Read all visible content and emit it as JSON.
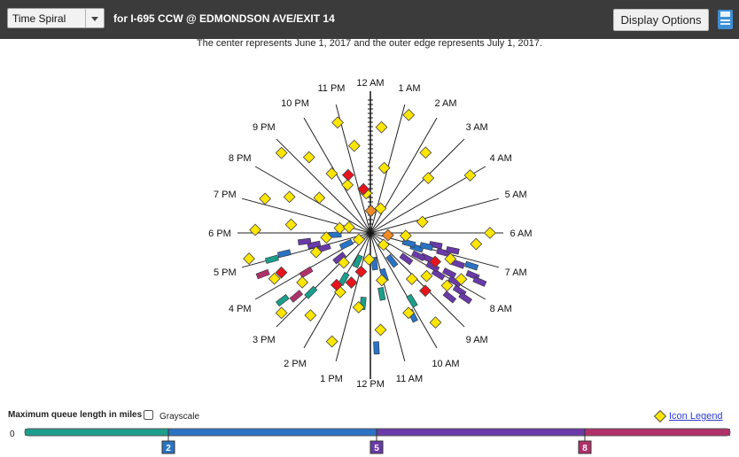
{
  "toolbar": {
    "view_select": "Time Spiral",
    "location": "for I-695 CCW @ EDMONDSON AVE/EXIT 14",
    "display_options": "Display Options",
    "save_icon": "save-icon"
  },
  "caption": "The center represents June 1, 2017 and the outer edge represents July 1, 2017.",
  "legend": {
    "title": "Maximum queue length in miles",
    "grayscale_label": "Grayscale",
    "icon_legend_link": "Icon Legend",
    "zero_label": "0",
    "thresholds": [
      "2",
      "5",
      "8"
    ],
    "colors": {
      "low": "#1b9e8c",
      "mid": "#2a73c4",
      "high": "#6a3aa8",
      "max": "#b0306a"
    }
  },
  "chart_data": {
    "type": "scatter",
    "radial_axis": {
      "start": "June 1, 2017",
      "end": "July 1, 2017"
    },
    "hour_labels": [
      "12 AM",
      "1 AM",
      "2 AM",
      "3 AM",
      "4 AM",
      "5 AM",
      "6 AM",
      "7 AM",
      "8 AM",
      "9 AM",
      "10 AM",
      "11 AM",
      "12 PM",
      "1 PM",
      "2 PM",
      "3 PM",
      "4 PM",
      "5 PM",
      "6 PM",
      "7 PM",
      "8 PM",
      "9 PM",
      "10 PM",
      "11 PM"
    ],
    "series": [
      {
        "marker": "diamond",
        "color": "#ffe600",
        "points": [
          {
            "day": 28,
            "hour": 1.2
          },
          {
            "day": 22,
            "hour": 2.3
          },
          {
            "day": 18,
            "hour": 3.1
          },
          {
            "day": 26,
            "hour": 4.0
          },
          {
            "day": 12,
            "hour": 5.2
          },
          {
            "day": 27,
            "hour": 6.0
          },
          {
            "day": 24,
            "hour": 6.4
          },
          {
            "day": 8,
            "hour": 6.3
          },
          {
            "day": 19,
            "hour": 7.2
          },
          {
            "day": 23,
            "hour": 7.8
          },
          {
            "day": 21,
            "hour": 8.3
          },
          {
            "day": 16,
            "hour": 8.5
          },
          {
            "day": 25,
            "hour": 9.6
          },
          {
            "day": 14,
            "hour": 9.2
          },
          {
            "day": 20,
            "hour": 10.3
          },
          {
            "day": 11,
            "hour": 11.1
          },
          {
            "day": 22,
            "hour": 11.6
          },
          {
            "day": 17,
            "hour": 12.6
          },
          {
            "day": 26,
            "hour": 13.3
          },
          {
            "day": 15,
            "hour": 13.8
          },
          {
            "day": 23,
            "hour": 14.4
          },
          {
            "day": 9,
            "hour": 14.8
          },
          {
            "day": 27,
            "hour": 15.2
          },
          {
            "day": 19,
            "hour": 15.6
          },
          {
            "day": 24,
            "hour": 16.3
          },
          {
            "day": 13,
            "hour": 16.7
          },
          {
            "day": 28,
            "hour": 17.2
          },
          {
            "day": 10,
            "hour": 17.6
          },
          {
            "day": 26,
            "hour": 18.1
          },
          {
            "day": 18,
            "hour": 18.4
          },
          {
            "day": 7,
            "hour": 18.6
          },
          {
            "day": 25,
            "hour": 19.2
          },
          {
            "day": 20,
            "hour": 19.6
          },
          {
            "day": 14,
            "hour": 20.3
          },
          {
            "day": 27,
            "hour": 20.8
          },
          {
            "day": 22,
            "hour": 21.4
          },
          {
            "day": 16,
            "hour": 21.8
          },
          {
            "day": 12,
            "hour": 22.3
          },
          {
            "day": 26,
            "hour": 22.9
          },
          {
            "day": 20,
            "hour": 23.3
          },
          {
            "day": 9,
            "hour": 23.6
          },
          {
            "day": 24,
            "hour": 0.4
          },
          {
            "day": 15,
            "hour": 0.8
          },
          {
            "day": 6,
            "hour": 1.5
          },
          {
            "day": 5,
            "hour": 19.0
          },
          {
            "day": 4,
            "hour": 8.8
          },
          {
            "day": 6,
            "hour": 12.2
          },
          {
            "day": 3,
            "hour": 16.0
          }
        ]
      },
      {
        "marker": "diamond",
        "color": "#e8141c",
        "points": [
          {
            "day": 14,
            "hour": 22.6
          },
          {
            "day": 10,
            "hour": 23.4
          },
          {
            "day": 16,
            "hour": 7.6
          },
          {
            "day": 18,
            "hour": 9.1
          },
          {
            "day": 12,
            "hour": 13.4
          },
          {
            "day": 14,
            "hour": 14.2
          },
          {
            "day": 22,
            "hour": 16.4
          },
          {
            "day": 9,
            "hour": 12.9
          }
        ]
      },
      {
        "marker": "diamond",
        "color": "#f08a24",
        "points": [
          {
            "day": 5,
            "hour": 0.1
          },
          {
            "day": 4,
            "hour": 6.5
          }
        ]
      },
      {
        "marker": "bar",
        "color": "#6a3aa8",
        "points": [
          {
            "day": 20,
            "hour": 7.8
          },
          {
            "day": 22,
            "hour": 8.0
          },
          {
            "day": 24,
            "hour": 8.2
          },
          {
            "day": 26,
            "hour": 8.3
          },
          {
            "day": 18,
            "hour": 8.1
          },
          {
            "day": 16,
            "hour": 7.9
          },
          {
            "day": 21,
            "hour": 7.3
          },
          {
            "day": 25,
            "hour": 7.5
          },
          {
            "day": 14,
            "hour": 7.6
          },
          {
            "day": 12,
            "hour": 7.7
          },
          {
            "day": 17,
            "hour": 7.0
          },
          {
            "day": 27,
            "hour": 7.6
          },
          {
            "day": 10,
            "hour": 8.4
          },
          {
            "day": 23,
            "hour": 8.6
          },
          {
            "day": 19,
            "hour": 6.8
          },
          {
            "day": 15,
            "hour": 6.7
          },
          {
            "day": 13,
            "hour": 17.2
          },
          {
            "day": 15,
            "hour": 17.5
          },
          {
            "day": 11,
            "hour": 16.8
          },
          {
            "day": 9,
            "hour": 15.4
          }
        ]
      },
      {
        "marker": "bar",
        "color": "#2a73c4",
        "points": [
          {
            "day": 11,
            "hour": 7.2
          },
          {
            "day": 9,
            "hour": 7.0
          },
          {
            "day": 13,
            "hour": 6.9
          },
          {
            "day": 24,
            "hour": 7.2
          },
          {
            "day": 8,
            "hour": 9.5
          },
          {
            "day": 21,
            "hour": 10.2
          },
          {
            "day": 10,
            "hour": 10.8
          },
          {
            "day": 7,
            "hour": 11.5
          },
          {
            "day": 26,
            "hour": 11.8
          },
          {
            "day": 6,
            "hour": 16.3
          },
          {
            "day": 8,
            "hour": 17.8
          },
          {
            "day": 20,
            "hour": 17.1
          }
        ]
      },
      {
        "marker": "bar",
        "color": "#1b9e8c",
        "points": [
          {
            "day": 19,
            "hour": 15.0
          },
          {
            "day": 12,
            "hour": 14.0
          },
          {
            "day": 16,
            "hour": 12.4
          },
          {
            "day": 23,
            "hour": 17.0
          },
          {
            "day": 14,
            "hour": 11.3
          },
          {
            "day": 7,
            "hour": 13.6
          },
          {
            "day": 25,
            "hour": 15.5
          },
          {
            "day": 18,
            "hour": 9.9
          }
        ]
      },
      {
        "marker": "bar",
        "color": "#b0306a",
        "points": [
          {
            "day": 22,
            "hour": 15.3
          },
          {
            "day": 26,
            "hour": 16.6
          },
          {
            "day": 17,
            "hour": 15.9
          }
        ]
      }
    ]
  }
}
